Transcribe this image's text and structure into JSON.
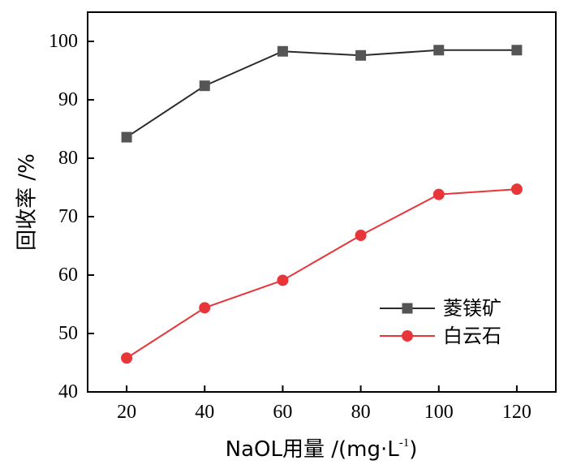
{
  "chart_data": {
    "type": "line",
    "title": "",
    "x": [
      20,
      40,
      60,
      80,
      100,
      120
    ],
    "xlabel": {
      "prefix": "NaOL用量 /(mg·L",
      "sup": "-1",
      "suffix": ")"
    },
    "ylabel": "回收率 /%",
    "xlim": [
      10,
      130
    ],
    "ylim": [
      40,
      105
    ],
    "xticks": [
      20,
      40,
      60,
      80,
      100,
      120
    ],
    "yticks": [
      40,
      50,
      60,
      70,
      80,
      90,
      100
    ],
    "grid": false,
    "legend_position": "lower-right",
    "series": [
      {
        "name": "菱镁矿",
        "marker": "square",
        "color": "#555555",
        "line_color": "#2b2b2b",
        "values": [
          83.6,
          92.4,
          98.3,
          97.6,
          98.5,
          98.5
        ]
      },
      {
        "name": "白云石",
        "marker": "circle",
        "color": "#e8353a",
        "line_color": "#e8353a",
        "values": [
          45.8,
          54.4,
          59.1,
          66.8,
          73.8,
          74.7
        ]
      }
    ]
  }
}
